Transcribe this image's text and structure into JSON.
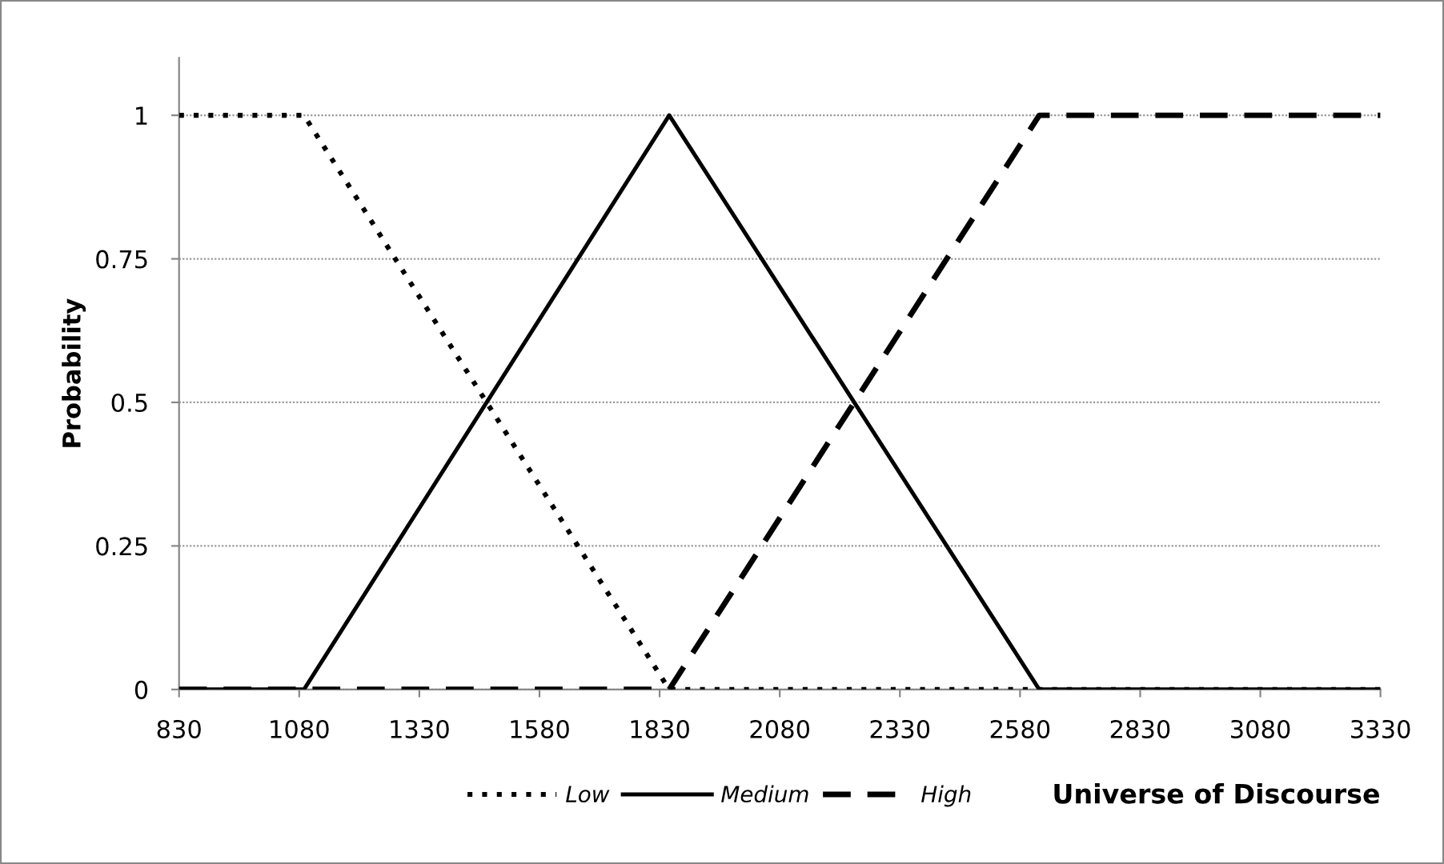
{
  "chart_data": {
    "type": "line",
    "xlabel": "Universe of Discourse",
    "ylabel": "Probability",
    "xlim": [
      830,
      3330
    ],
    "xticks": [
      830,
      1080,
      1330,
      1580,
      1830,
      2080,
      2330,
      2580,
      2830,
      3080,
      3330
    ],
    "ylim": [
      0,
      1.1
    ],
    "yticks": [
      0,
      0.25,
      0.5,
      0.75,
      1
    ],
    "grid": "y",
    "legend": "bottom",
    "marker": "none",
    "series": [
      {
        "name": "Low",
        "color": "#000000",
        "line_style": "dotted",
        "x": [
          830,
          1090,
          1850,
          3330
        ],
        "values": [
          1,
          1,
          0,
          0
        ]
      },
      {
        "name": "Medium",
        "color": "#000000",
        "line_style": "solid",
        "x": [
          830,
          1090,
          1850,
          2620,
          3330
        ],
        "values": [
          0,
          0,
          1,
          0,
          0
        ]
      },
      {
        "name": "High",
        "color": "#000000",
        "line_style": "dashed",
        "x": [
          830,
          1850,
          2620,
          3330
        ],
        "values": [
          0,
          0,
          1,
          1
        ]
      }
    ]
  }
}
